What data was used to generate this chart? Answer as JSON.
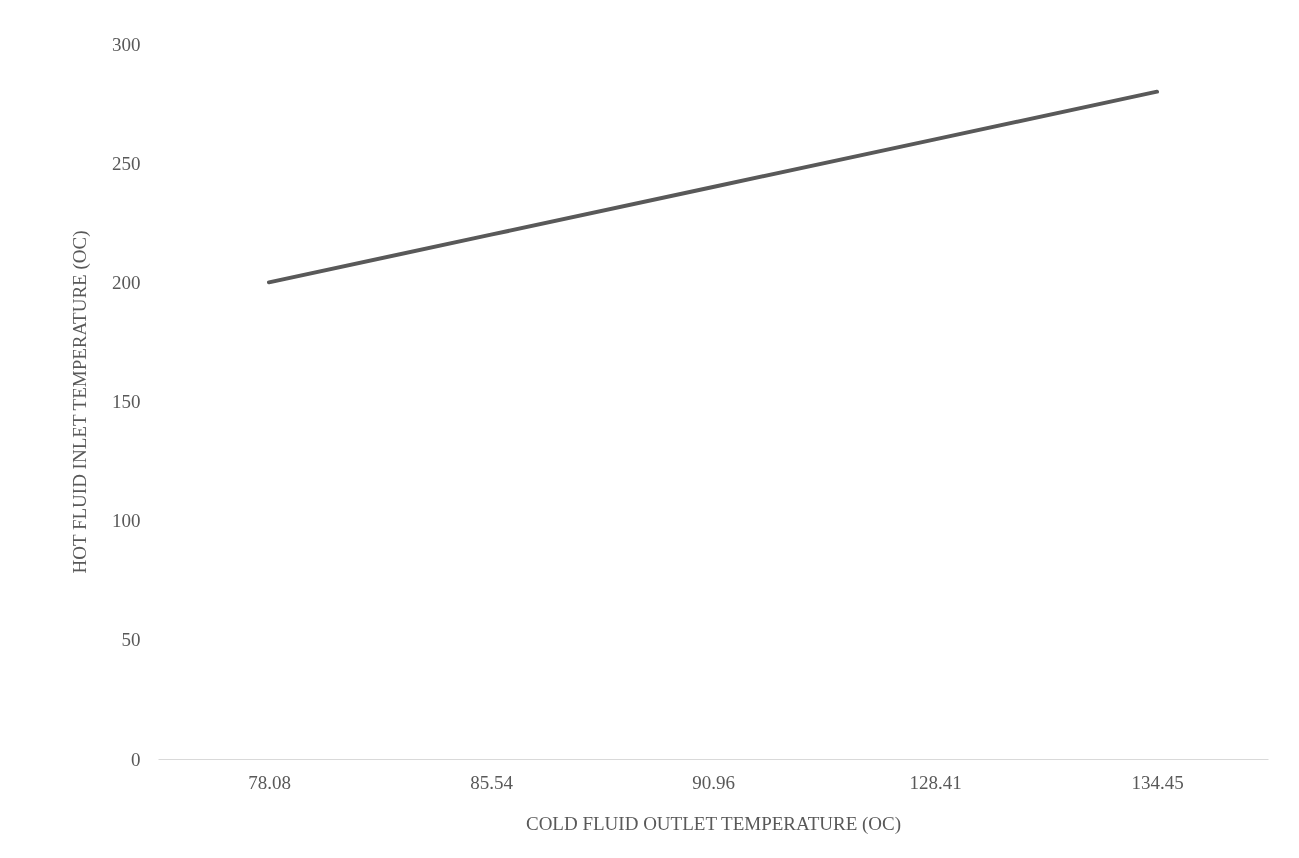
{
  "chart_data": {
    "type": "line",
    "xlabel": "COLD FLUID OUTLET TEMPERATURE (OC)",
    "ylabel": "HOT FLUID  INLET TEMPERATURE (OC)",
    "categories": [
      "78.08",
      "85.54",
      "90.96",
      "128.41",
      "134.45"
    ],
    "series": [
      {
        "color": "#595959",
        "values": [
          200,
          220,
          240,
          260,
          280
        ]
      }
    ],
    "ylim": [
      0,
      300
    ],
    "yticks": [
      0,
      50,
      100,
      150,
      200,
      250,
      300
    ],
    "grid": false,
    "legend": false,
    "marker": "none",
    "line_style": "solid"
  }
}
